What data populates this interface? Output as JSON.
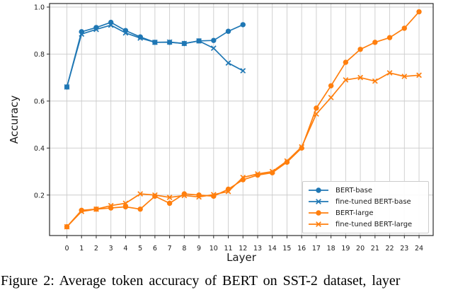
{
  "figure": {
    "caption": "Figure 2: Average token accuracy of BERT on SST-2 dataset, layer"
  },
  "chart_data": {
    "type": "line",
    "title": "",
    "xlabel": "Layer",
    "ylabel": "Accuracy",
    "xlim": [
      -1.2,
      25.2
    ],
    "ylim": [
      0.03,
      1.01
    ],
    "x_ticks": [
      0,
      1,
      2,
      3,
      4,
      5,
      6,
      7,
      8,
      9,
      10,
      11,
      12,
      13,
      14,
      15,
      16,
      17,
      18,
      19,
      20,
      21,
      22,
      23,
      24
    ],
    "y_ticks": [
      0.2,
      0.4,
      0.6,
      0.8,
      1.0
    ],
    "grid": true,
    "grid_color": "#cccccc",
    "legend_position": "lower right",
    "series": [
      {
        "name": "BERT-base",
        "color": "#1f77b4",
        "marker": "circle",
        "x": [
          0,
          1,
          2,
          3,
          4,
          5,
          6,
          7,
          8,
          9,
          10,
          11,
          12
        ],
        "values": [
          0.66,
          0.895,
          0.913,
          0.935,
          0.9,
          0.873,
          0.85,
          0.85,
          0.845,
          0.856,
          0.858,
          0.897,
          0.925
        ]
      },
      {
        "name": "fine-tuned BERT-base",
        "color": "#1f77b4",
        "marker": "x",
        "x": [
          0,
          1,
          2,
          3,
          4,
          5,
          6,
          7,
          8,
          9,
          10,
          11,
          12
        ],
        "values": [
          0.66,
          0.885,
          0.905,
          0.923,
          0.89,
          0.868,
          0.85,
          0.851,
          0.845,
          0.856,
          0.825,
          0.762,
          0.729
        ]
      },
      {
        "name": "BERT-large",
        "color": "#ff7f0e",
        "marker": "circle",
        "x": [
          0,
          1,
          2,
          3,
          4,
          5,
          6,
          7,
          8,
          9,
          10,
          11,
          12,
          13,
          14,
          15,
          16,
          17,
          18,
          19,
          20,
          21,
          22,
          23,
          24
        ],
        "values": [
          0.065,
          0.135,
          0.14,
          0.145,
          0.15,
          0.14,
          0.195,
          0.165,
          0.205,
          0.2,
          0.195,
          0.225,
          0.265,
          0.285,
          0.295,
          0.34,
          0.4,
          0.57,
          0.665,
          0.765,
          0.82,
          0.85,
          0.87,
          0.91,
          0.98
        ]
      },
      {
        "name": "fine-tuned BERT-large",
        "color": "#ff7f0e",
        "marker": "x",
        "x": [
          0,
          1,
          2,
          3,
          4,
          5,
          6,
          7,
          8,
          9,
          10,
          11,
          12,
          13,
          14,
          15,
          16,
          17,
          18,
          19,
          20,
          21,
          22,
          23,
          24
        ],
        "values": [
          0.065,
          0.13,
          0.14,
          0.155,
          0.165,
          0.205,
          0.2,
          0.19,
          0.198,
          0.192,
          0.202,
          0.215,
          0.275,
          0.29,
          0.3,
          0.345,
          0.405,
          0.545,
          0.615,
          0.69,
          0.7,
          0.685,
          0.72,
          0.705,
          0.71
        ]
      }
    ]
  }
}
